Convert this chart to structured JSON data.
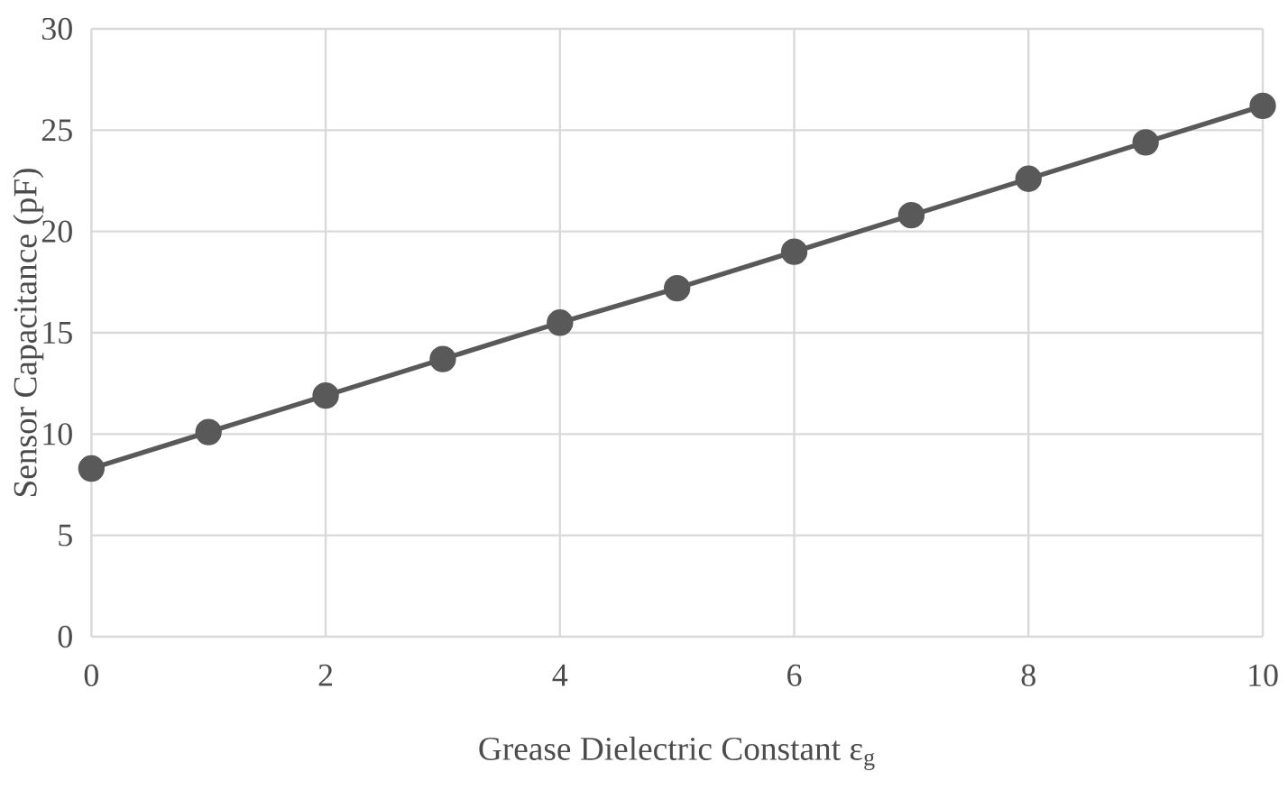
{
  "chart_data": {
    "type": "line",
    "xlabel": "Grease Dielectric Constant ε$_{g}$",
    "ylabel": "Sensor Capacitance (pF)",
    "x": [
      0,
      1,
      2,
      3,
      4,
      5,
      6,
      7,
      8,
      9,
      10
    ],
    "series": [
      {
        "color": "#595959",
        "values": [
          8.3,
          10.1,
          11.9,
          13.7,
          15.5,
          17.2,
          19.0,
          20.8,
          22.6,
          24.4,
          26.2
        ]
      }
    ],
    "xlim": [
      0,
      10
    ],
    "xticks": [
      0,
      2,
      4,
      6,
      8,
      10
    ],
    "ylim": [
      0,
      30
    ],
    "yticks": [
      0,
      5,
      10,
      15,
      20,
      25,
      30
    ],
    "grid": true,
    "marker": "circle",
    "line_style": "solid"
  }
}
